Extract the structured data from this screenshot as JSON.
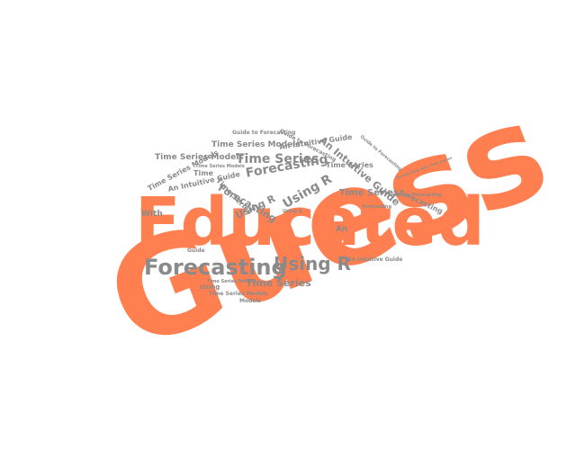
{
  "words": {
    "guess": "Guess",
    "educated": "Educated",
    "forecasting_big": "Forecasting",
    "using_r_big": "Using R",
    "forecasting_mid": "Forecasting",
    "time_series_mid": "Time Series",
    "using_r_mid": "Using R",
    "using_r_small": "Using R",
    "an_intuitive_guide_top": "An Intuitive Guide",
    "time_series_models_top": "Time Series Models",
    "time_series_models_left": "Time Series Models",
    "time_series_models_diag": "Time Series Models",
    "an_intuitive_guide_left": "An Intuitive Guide",
    "an_intuitive_guide_mid": "An Intuitive Guide",
    "guide_to_forecasting_top": "Guide to Forecasting",
    "guide_to_forecasting_right": "Guide to Forecasting",
    "guide_to_forecasting_small": "Guide to Forecasting",
    "forecasting_diag": "Forecasting",
    "forecasting_right": "Forecasting",
    "time_series_right": "Time Series",
    "time_series_lower": "Time Series",
    "time_series_small": "Time Series",
    "time_series_vert": "Time Series",
    "time_series_models_lower": "Time Series Models",
    "time_series_models_tiny": "Time Series Models",
    "models": "Models",
    "using": "Using",
    "with": "With",
    "guide": "Guide",
    "time": "Time",
    "forecasting_with_time_series": "Forecasting with Time Series",
    "an_intuitive_guide_lower": "An Intuitive Guide",
    "an": "An",
    "using_r_tiny": "Using R",
    "forecasting_tiny": "Forecasting",
    "time_series_models_small": "Time Series Models",
    "guide_to_forecasting_tiny": "Guide to Forecasting"
  },
  "colors": {
    "accent": "#ff7f50",
    "gray": "#8a8a8a"
  }
}
